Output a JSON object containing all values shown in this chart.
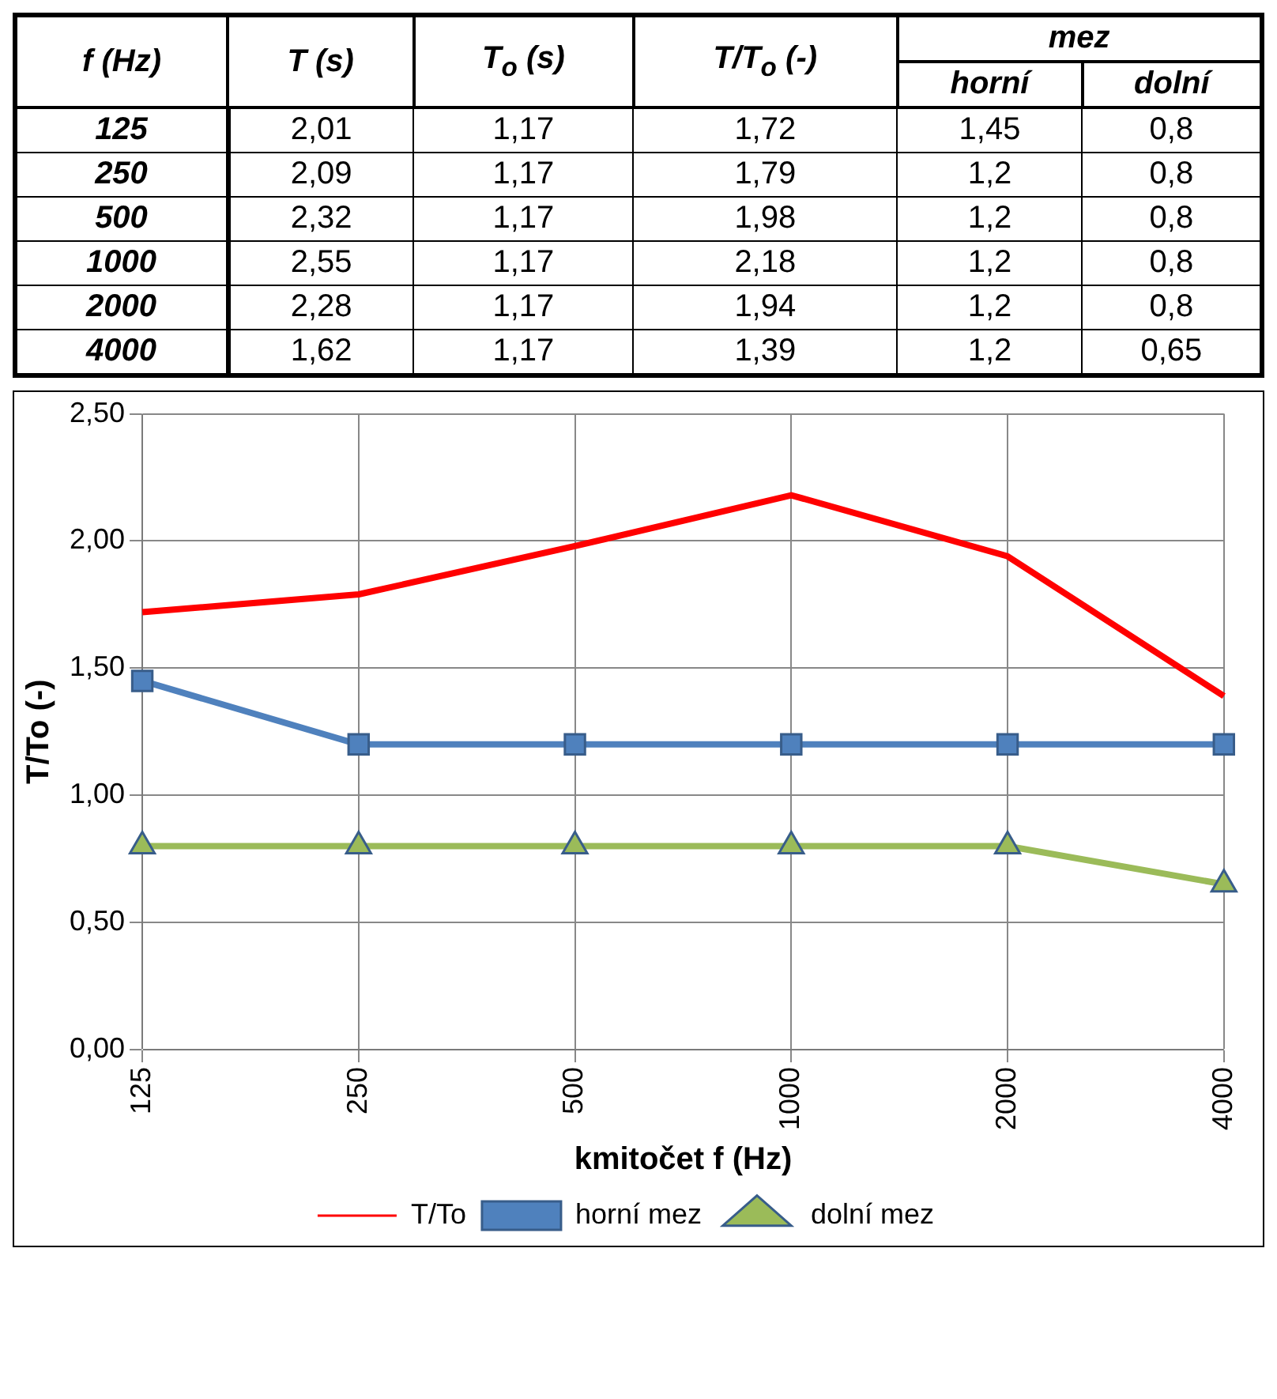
{
  "chart_data": [
    {
      "type": "other",
      "xlabel": "f (Hz)",
      "categories": [
        "125",
        "250",
        "500",
        "1000",
        "2000",
        "4000"
      ],
      "annotations": [
        "mez"
      ],
      "series": [
        {
          "name": "T (s)",
          "values": [
            2.01,
            2.09,
            2.32,
            2.55,
            2.28,
            1.62
          ],
          "value_labels": [
            "2,01",
            "2,09",
            "2,32",
            "2,55",
            "2,28",
            "1,62"
          ]
        },
        {
          "name": "T$_{o}$ (s)",
          "values": [
            1.17,
            1.17,
            1.17,
            1.17,
            1.17,
            1.17
          ],
          "value_labels": [
            "1,17",
            "1,17",
            "1,17",
            "1,17",
            "1,17",
            "1,17"
          ]
        },
        {
          "name": "T/T$_{o}$ (-)",
          "values": [
            1.72,
            1.79,
            1.98,
            2.18,
            1.94,
            1.39
          ],
          "value_labels": [
            "1,72",
            "1,79",
            "1,98",
            "2,18",
            "1,94",
            "1,39"
          ]
        },
        {
          "name": "horní",
          "values": [
            1.45,
            1.2,
            1.2,
            1.2,
            1.2,
            1.2
          ],
          "value_labels": [
            "1,45",
            "1,2",
            "1,2",
            "1,2",
            "1,2",
            "1,2"
          ]
        },
        {
          "name": "dolní",
          "values": [
            0.8,
            0.8,
            0.8,
            0.8,
            0.8,
            0.65
          ],
          "value_labels": [
            "0,8",
            "0,8",
            "0,8",
            "0,8",
            "0,8",
            "0,65"
          ]
        }
      ]
    },
    {
      "type": "line",
      "xlabel": "kmitočet f (Hz)",
      "ylabel": "T/To (-)",
      "categories": [
        "125",
        "250",
        "500",
        "1000",
        "2000",
        "4000"
      ],
      "ylim": [
        0,
        2.5
      ],
      "yticks": [
        {
          "value": 0,
          "label": "0,00"
        },
        {
          "value": 0.5,
          "label": "0,50"
        },
        {
          "value": 1,
          "label": "1,00"
        },
        {
          "value": 1.5,
          "label": "1,50"
        },
        {
          "value": 2,
          "label": "2,00"
        },
        {
          "value": 2.5,
          "label": "2,50"
        }
      ],
      "grid": true,
      "legend": "bottom",
      "series": [
        {
          "name": "T/To",
          "color": "#ff0000",
          "marker": "none",
          "values": [
            1.72,
            1.79,
            1.98,
            2.18,
            1.94,
            1.39
          ]
        },
        {
          "name": "horní mez",
          "color": "#4f81bd",
          "marker": "square",
          "values": [
            1.45,
            1.2,
            1.2,
            1.2,
            1.2,
            1.2
          ]
        },
        {
          "name": "dolní mez",
          "color": "#9bbb59",
          "marker": "triangle",
          "values": [
            0.8,
            0.8,
            0.8,
            0.8,
            0.8,
            0.65
          ]
        }
      ]
    }
  ]
}
